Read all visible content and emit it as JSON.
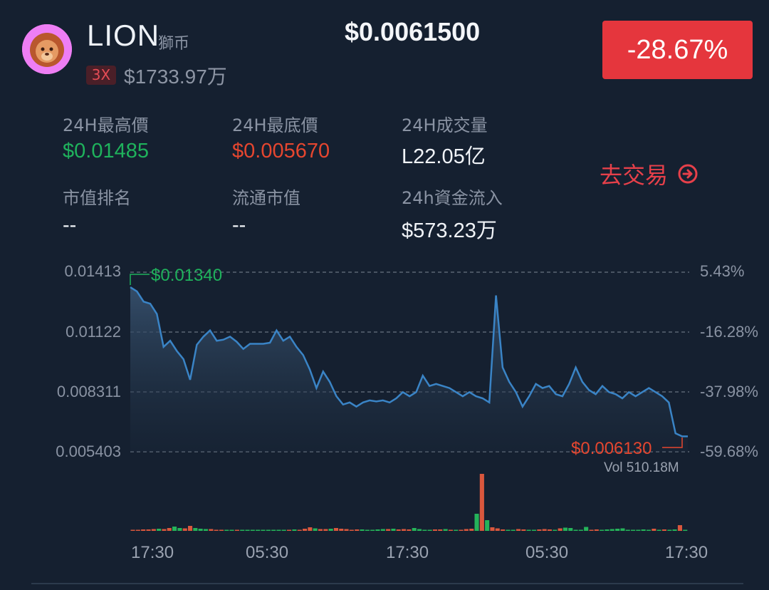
{
  "coin": {
    "symbol": "LION",
    "name_cn": "獅币",
    "leverage": "3X",
    "market_cap": "$1733.97万",
    "price": "$0.0061500",
    "change": "-28.67%"
  },
  "stats": {
    "high_label": "24H最高價",
    "high_value": "$0.01485",
    "low_label": "24H最底價",
    "low_value": "$0.005670",
    "volume_label": "24H成交量",
    "volume_value": "L22.05亿",
    "rank_label": "市值排名",
    "rank_value": "--",
    "circ_label": "流通市值",
    "circ_value": "--",
    "inflow_label": "24h資金流入",
    "inflow_value": "$573.23万"
  },
  "trade": {
    "label": "去交易",
    "icon": "arrow-right-circle-icon"
  },
  "chart": {
    "left_axis": [
      "0.01413",
      "0.01122",
      "0.008311",
      "0.005403"
    ],
    "right_axis": [
      "5.43%",
      "-16.28%",
      "-37.98%",
      "-59.68%"
    ],
    "high_marker": "$0.01340",
    "low_marker": "$0.006130",
    "vol_label": "Vol 510.18M",
    "time_labels": [
      "17:30",
      "05:30",
      "17:30",
      "05:30",
      "17:30"
    ]
  },
  "chart_data": {
    "type": "line",
    "ylim": [
      0.005403,
      0.01413
    ],
    "price_values": [
      0.0134,
      0.0132,
      0.0127,
      0.0126,
      0.0121,
      0.0105,
      0.0108,
      0.0103,
      0.0099,
      0.0089,
      0.0106,
      0.011,
      0.0113,
      0.0108,
      0.01085,
      0.011,
      0.01075,
      0.0104,
      0.01065,
      0.01065,
      0.01065,
      0.0107,
      0.0113,
      0.0108,
      0.011,
      0.0105,
      0.0101,
      0.0094,
      0.0085,
      0.0093,
      0.0088,
      0.0081,
      0.0077,
      0.0078,
      0.0076,
      0.0078,
      0.0079,
      0.00785,
      0.0079,
      0.0078,
      0.008,
      0.0083,
      0.0081,
      0.0083,
      0.0091,
      0.0086,
      0.0087,
      0.0086,
      0.0085,
      0.0083,
      0.0081,
      0.0083,
      0.0081,
      0.008,
      0.0078,
      0.013,
      0.0095,
      0.0088,
      0.0083,
      0.0076,
      0.0081,
      0.0087,
      0.0085,
      0.0086,
      0.0082,
      0.0081,
      0.0087,
      0.0095,
      0.0088,
      0.0084,
      0.0082,
      0.0086,
      0.0083,
      0.0082,
      0.008,
      0.0083,
      0.0081,
      0.0083,
      0.0085,
      0.0083,
      0.0081,
      0.0078,
      0.0063,
      0.00615
    ],
    "volume_values": [
      3,
      3,
      4,
      4,
      5,
      6,
      5,
      8,
      12,
      8,
      7,
      14,
      8,
      6,
      5,
      5,
      3,
      3,
      2,
      3,
      2,
      2,
      1,
      1,
      2,
      1,
      2,
      1,
      3,
      2,
      3,
      4,
      3,
      6,
      10,
      7,
      5,
      5,
      6,
      8,
      6,
      5,
      3,
      4,
      4,
      3,
      3,
      4,
      5,
      5,
      6,
      4,
      5,
      4,
      8,
      5,
      3,
      3,
      4,
      4,
      5,
      3,
      2,
      3,
      5,
      6,
      48,
      160,
      30,
      10,
      7,
      4,
      3,
      3,
      5,
      4,
      3,
      2,
      4,
      5,
      4,
      3,
      7,
      9,
      8,
      3,
      3,
      11,
      3,
      4,
      3,
      4,
      5,
      6,
      7,
      3,
      2,
      3,
      4,
      3,
      6,
      3,
      4,
      3,
      4,
      16,
      3
    ],
    "volume_colors": [
      "r",
      "r",
      "r",
      "r",
      "r",
      "g",
      "r",
      "r",
      "g",
      "g",
      "r",
      "r",
      "g",
      "g",
      "g",
      "r",
      "r",
      "r",
      "g",
      "g",
      "r",
      "g",
      "g",
      "g",
      "g",
      "g",
      "g",
      "g",
      "g",
      "g",
      "r",
      "g",
      "r",
      "r",
      "r",
      "g",
      "r",
      "r",
      "g",
      "r",
      "r",
      "r",
      "r",
      "r",
      "g",
      "g",
      "g",
      "g",
      "g",
      "r",
      "g",
      "r",
      "r",
      "r",
      "g",
      "g",
      "g",
      "g",
      "r",
      "r",
      "g",
      "r",
      "g",
      "r",
      "r",
      "r",
      "g",
      "r",
      "g",
      "r",
      "r",
      "r",
      "g",
      "g",
      "r",
      "r",
      "g",
      "g",
      "r",
      "r",
      "r",
      "g",
      "r",
      "g",
      "g",
      "g",
      "g",
      "g",
      "r",
      "r",
      "g",
      "g",
      "g",
      "g",
      "g",
      "g",
      "g",
      "g",
      "g",
      "g",
      "r",
      "g",
      "r",
      "g",
      "g",
      "r",
      "g"
    ]
  }
}
